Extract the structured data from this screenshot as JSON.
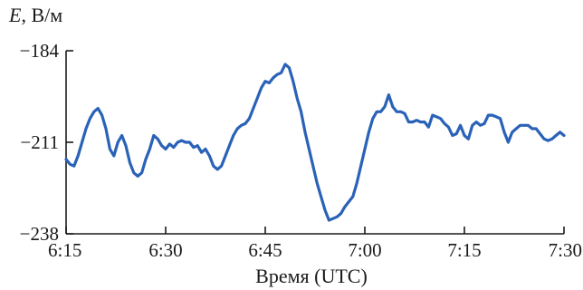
{
  "chart_data": {
    "type": "line",
    "ylabel_var": "E",
    "ylabel_unit": ", В/м",
    "xlabel": "Время (UTC)",
    "xlim": [
      6.25,
      7.5
    ],
    "ylim": [
      -238,
      -184
    ],
    "x_ticks": [
      {
        "value": 6.25,
        "label": "6:15"
      },
      {
        "value": 6.5,
        "label": "6:30"
      },
      {
        "value": 6.75,
        "label": "6:45"
      },
      {
        "value": 7.0,
        "label": "7:00"
      },
      {
        "value": 7.25,
        "label": "7:15"
      },
      {
        "value": 7.5,
        "label": "7:30"
      }
    ],
    "y_ticks": [
      {
        "value": -184,
        "label": "−184"
      },
      {
        "value": -211,
        "label": "−211"
      },
      {
        "value": -238,
        "label": "−238"
      }
    ],
    "grid": false,
    "series": [
      {
        "color": "#2a62b8",
        "x": [
          6.25,
          6.26,
          6.27,
          6.28,
          6.29,
          6.3,
          6.31,
          6.32,
          6.33,
          6.34,
          6.35,
          6.36,
          6.37,
          6.38,
          6.39,
          6.4,
          6.41,
          6.42,
          6.43,
          6.44,
          6.45,
          6.46,
          6.47,
          6.48,
          6.49,
          6.5,
          6.51,
          6.52,
          6.53,
          6.54,
          6.55,
          6.56,
          6.57,
          6.58,
          6.59,
          6.6,
          6.61,
          6.62,
          6.63,
          6.64,
          6.65,
          6.66,
          6.67,
          6.68,
          6.69,
          6.7,
          6.71,
          6.72,
          6.73,
          6.74,
          6.75,
          6.76,
          6.77,
          6.78,
          6.79,
          6.8,
          6.81,
          6.82,
          6.83,
          6.84,
          6.85,
          6.86,
          6.87,
          6.88,
          6.89,
          6.9,
          6.91,
          6.92,
          6.93,
          6.94,
          6.95,
          6.96,
          6.97,
          6.98,
          6.99,
          7.0,
          7.01,
          7.02,
          7.03,
          7.04,
          7.05,
          7.06,
          7.07,
          7.08,
          7.09,
          7.1,
          7.11,
          7.12,
          7.13,
          7.14,
          7.15,
          7.16,
          7.17,
          7.18,
          7.19,
          7.2,
          7.21,
          7.22,
          7.23,
          7.24,
          7.25,
          7.26,
          7.27,
          7.28,
          7.29,
          7.3,
          7.31,
          7.32,
          7.33,
          7.34,
          7.35,
          7.36,
          7.37,
          7.38,
          7.39,
          7.4,
          7.41,
          7.42,
          7.43,
          7.44,
          7.45,
          7.46,
          7.47,
          7.48,
          7.49,
          7.5
        ],
        "values": [
          -216,
          -217.5,
          -218,
          -215,
          -211,
          -207,
          -204,
          -202,
          -201,
          -203,
          -207,
          -213,
          -215,
          -211,
          -209,
          -212,
          -217,
          -220,
          -221,
          -220,
          -216,
          -213,
          -209,
          -210,
          -212,
          -213,
          -211.5,
          -212.5,
          -211,
          -210.5,
          -211,
          -211,
          -212.5,
          -212,
          -214,
          -213,
          -215,
          -218,
          -219,
          -218,
          -215,
          -212,
          -209,
          -207,
          -206,
          -205.5,
          -204,
          -201,
          -198,
          -195,
          -193,
          -193.5,
          -192,
          -191,
          -190.5,
          -188,
          -189,
          -193,
          -198,
          -202,
          -208,
          -213,
          -218,
          -223,
          -227,
          -231,
          -234,
          -233.5,
          -233,
          -232,
          -230,
          -228.5,
          -227,
          -223,
          -218,
          -213,
          -208,
          -204,
          -202,
          -202,
          -200.5,
          -197,
          -200.5,
          -202,
          -202,
          -202.5,
          -205,
          -205,
          -204.5,
          -205,
          -205,
          -206.5,
          -203,
          -203.5,
          -204,
          -205.5,
          -206.5,
          -209,
          -208.5,
          -206,
          -209,
          -210,
          -206,
          -205,
          -206,
          -205.5,
          -203,
          -203,
          -203.5,
          -204,
          -208,
          -211,
          -208,
          -207,
          -206,
          -206,
          -206,
          -207,
          -207,
          -208.5,
          -210,
          -210.5,
          -210,
          -209,
          -208,
          -209
        ]
      }
    ]
  }
}
